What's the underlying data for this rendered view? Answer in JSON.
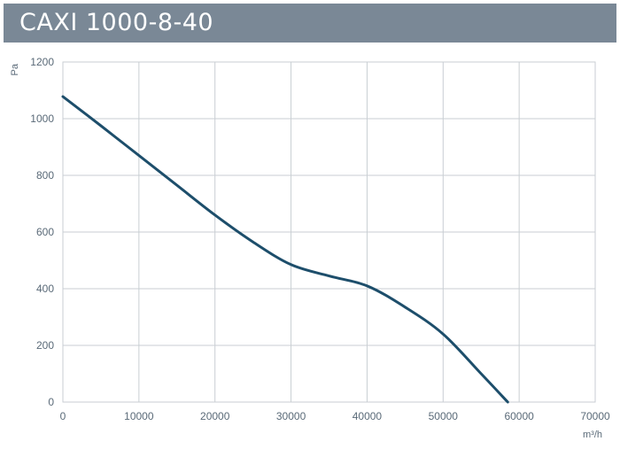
{
  "header": {
    "title": "CAXI 1000-8-40"
  },
  "chart_data": {
    "type": "line",
    "title": "CAXI 1000-8-40",
    "xlabel": "m³/h",
    "ylabel": "Pa",
    "xlim": [
      0,
      70000
    ],
    "ylim": [
      0,
      1200
    ],
    "x_ticks": [
      0,
      10000,
      20000,
      30000,
      40000,
      50000,
      60000,
      70000
    ],
    "y_ticks": [
      0,
      200,
      400,
      600,
      800,
      1000,
      1200
    ],
    "grid": true,
    "line_color": "#1d4e6b",
    "series": [
      {
        "x": [
          0,
          5000,
          10000,
          15000,
          20000,
          25000,
          30000,
          35000,
          40000,
          45000,
          50000,
          55000,
          58500
        ],
        "values": [
          1078,
          975,
          870,
          765,
          660,
          565,
          485,
          445,
          410,
          335,
          240,
          100,
          0
        ]
      }
    ]
  }
}
